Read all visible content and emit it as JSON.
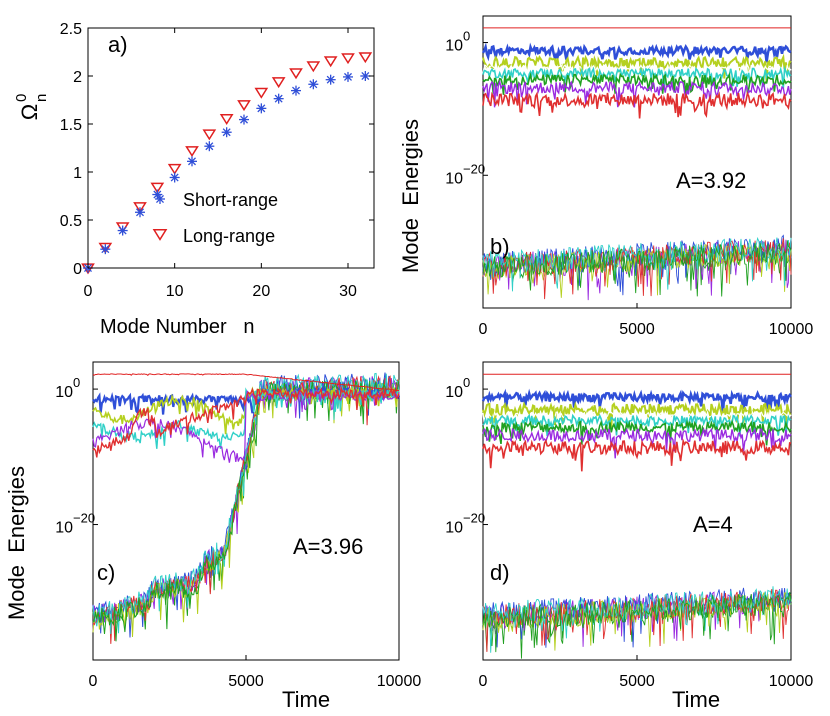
{
  "chart_data": [
    {
      "id": "a",
      "type": "scatter",
      "panel_label": "a)",
      "xlabel": "Mode Number   n",
      "ylabel_main": "Ω",
      "ylabel_sup": "0",
      "ylabel_sub": "n",
      "xlim": [
        0,
        33
      ],
      "ylim": [
        0,
        2.5
      ],
      "xticks": [
        "0",
        "10",
        "20",
        "30"
      ],
      "xtick_values": [
        0,
        10,
        20,
        30
      ],
      "yticks": [
        "0",
        "0.5",
        "1",
        "1.5",
        "2",
        "2.5"
      ],
      "ytick_values": [
        0,
        0.5,
        1,
        1.5,
        2,
        2.5
      ],
      "legend": {
        "position": "lower-center"
      },
      "series": [
        {
          "name": "Short-range",
          "marker": "asterisk",
          "color": "#2f4fd8",
          "formula": "2*sin(pi*n/64)",
          "x_range": [
            0,
            32
          ],
          "peak": 2.0
        },
        {
          "name": "Long-range",
          "marker": "triangle-down",
          "color": "#e02020",
          "formula": "2.2*sin(pi*n/64)",
          "x_range": [
            0,
            32
          ],
          "peak": 2.2
        }
      ]
    },
    {
      "id": "b",
      "type": "line",
      "panel_label": "b)",
      "annotation": "A=3.92",
      "ylabel": "Mode  Energies",
      "xlabel": "",
      "xlim": [
        0,
        10000
      ],
      "xticks": [
        "0",
        "5000",
        "10000"
      ],
      "xtick_values": [
        0,
        5000,
        10000
      ],
      "yscale": "log",
      "ylim_exponent": [
        -40,
        4
      ],
      "ytick_labels": [
        {
          "base": "10",
          "exp": "0",
          "value_exp": 0
        },
        {
          "base": "10",
          "exp": "−20",
          "value_exp": -20
        }
      ],
      "series_summary": "Mode energies remain localized for all t: excited modes flat near 10^1 down to 10^-7, remaining modes near 10^-33"
    },
    {
      "id": "c",
      "type": "line",
      "panel_label": "c)",
      "annotation": "A=3.96",
      "ylabel": "Mode  Energies",
      "xlabel": "Time",
      "xlim": [
        0,
        10000
      ],
      "xticks": [
        "0",
        "5000",
        "10000"
      ],
      "xtick_values": [
        0,
        5000,
        10000
      ],
      "yscale": "log",
      "ylim_exponent": [
        -40,
        4
      ],
      "ytick_labels": [
        {
          "base": "10",
          "exp": "0",
          "value_exp": 0
        },
        {
          "base": "10",
          "exp": "−20",
          "value_exp": -20
        }
      ],
      "series_summary": "Low-energy modes grow from ~10^-33 near t=0 to equipartition near 10^0 by t≈5500"
    },
    {
      "id": "d",
      "type": "line",
      "panel_label": "d)",
      "annotation": "A=4",
      "ylabel": "",
      "xlabel": "Time",
      "xlim": [
        0,
        10000
      ],
      "xticks": [
        "0",
        "5000",
        "10000"
      ],
      "xtick_values": [
        0,
        5000,
        10000
      ],
      "yscale": "log",
      "ylim_exponent": [
        -40,
        4
      ],
      "ytick_labels": [
        {
          "base": "10",
          "exp": "0",
          "value_exp": 0
        },
        {
          "base": "10",
          "exp": "−20",
          "value_exp": -20
        }
      ],
      "series_summary": "Mode energies stay localized: excited modes near 10^1 to 10^-7, others near 10^-33"
    }
  ],
  "line_colors": [
    "#e02020",
    "#2f4fd8",
    "#b5d020",
    "#ffffff",
    "#30d0c8",
    "#9a2be0",
    "#20a020",
    "#e03030"
  ]
}
